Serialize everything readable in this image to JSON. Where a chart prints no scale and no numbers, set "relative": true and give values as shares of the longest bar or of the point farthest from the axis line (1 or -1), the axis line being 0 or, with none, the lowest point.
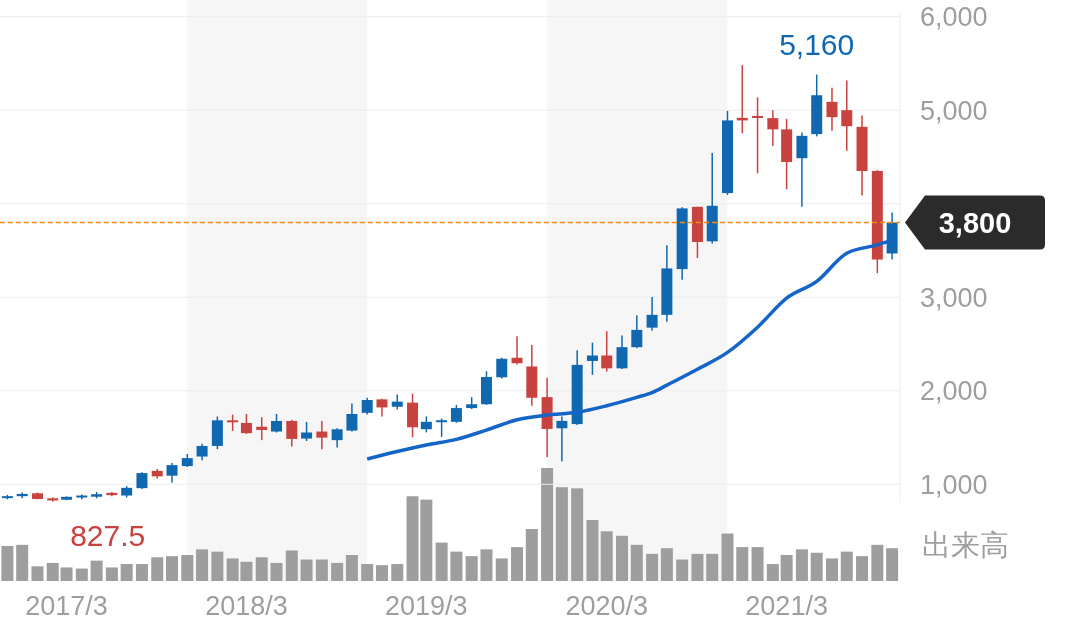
{
  "chart_data": [
    {
      "type": "candlestick",
      "x": [
        "2016-11",
        "2016-12",
        "2017-01",
        "2017-02",
        "2017-03",
        "2017-04",
        "2017-05",
        "2017-06",
        "2017-07",
        "2017-08",
        "2017-09",
        "2017-10",
        "2017-11",
        "2017-12",
        "2018-01",
        "2018-02",
        "2018-03",
        "2018-04",
        "2018-05",
        "2018-06",
        "2018-07",
        "2018-08",
        "2018-09",
        "2018-10",
        "2018-11",
        "2018-12",
        "2019-01",
        "2019-02",
        "2019-03",
        "2019-04",
        "2019-05",
        "2019-06",
        "2019-07",
        "2019-08",
        "2019-09",
        "2019-10",
        "2019-11",
        "2019-12",
        "2020-01",
        "2020-02",
        "2020-03",
        "2020-04",
        "2020-05",
        "2020-06",
        "2020-07",
        "2020-08",
        "2020-09",
        "2020-10",
        "2020-11",
        "2020-12",
        "2021-01",
        "2021-02",
        "2021-03",
        "2021-04",
        "2021-05",
        "2021-06",
        "2021-07",
        "2021-08",
        "2021-09",
        "2021-10"
      ],
      "ohlc": [
        [
          853,
          887,
          839,
          873
        ],
        [
          873,
          911,
          850,
          897
        ],
        [
          904,
          911,
          839,
          843
        ],
        [
          850,
          860,
          815,
          827.5
        ],
        [
          835,
          870,
          830,
          866
        ],
        [
          863,
          890,
          840,
          880
        ],
        [
          867,
          918,
          850,
          894
        ],
        [
          908,
          918,
          873,
          884
        ],
        [
          880,
          980,
          860,
          962
        ],
        [
          959,
          1130,
          949,
          1120
        ],
        [
          1144,
          1164,
          1062,
          1085
        ],
        [
          1092,
          1229,
          1017,
          1205
        ],
        [
          1195,
          1325,
          1185,
          1280
        ],
        [
          1297,
          1434,
          1256,
          1410
        ],
        [
          1410,
          1725,
          1376,
          1684
        ],
        [
          1684,
          1745,
          1571,
          1674
        ],
        [
          1656,
          1752,
          1540,
          1547
        ],
        [
          1615,
          1718,
          1472,
          1581
        ],
        [
          1564,
          1752,
          1554,
          1677
        ],
        [
          1677,
          1690,
          1403,
          1485
        ],
        [
          1489,
          1667,
          1462,
          1554
        ],
        [
          1564,
          1677,
          1376,
          1499
        ],
        [
          1472,
          1598,
          1393,
          1588
        ],
        [
          1574,
          1865,
          1564,
          1752
        ],
        [
          1764,
          1925,
          1747,
          1901
        ],
        [
          1908,
          1915,
          1726,
          1822
        ],
        [
          1829,
          1959,
          1801,
          1884
        ],
        [
          1873,
          1969,
          1503,
          1610
        ],
        [
          1589,
          1726,
          1555,
          1668
        ],
        [
          1671,
          1702,
          1507,
          1685
        ],
        [
          1668,
          1849,
          1658,
          1815
        ],
        [
          1815,
          1932,
          1805,
          1856
        ],
        [
          1856,
          2209,
          1849,
          2147
        ],
        [
          2144,
          2353,
          2130,
          2342
        ],
        [
          2353,
          2582,
          2281,
          2295
        ],
        [
          2260,
          2490,
          1839,
          1925
        ],
        [
          1932,
          2140,
          1291,
          1592
        ],
        [
          1599,
          1726,
          1247,
          1678
        ],
        [
          1644,
          2432,
          1634,
          2277
        ],
        [
          2319,
          2514,
          2171,
          2377
        ],
        [
          2377,
          2637,
          2205,
          2240
        ],
        [
          2240,
          2592,
          2233,
          2466
        ],
        [
          2466,
          2808,
          2455,
          2651
        ],
        [
          2675,
          3003,
          2641,
          2812
        ],
        [
          2812,
          3557,
          2737,
          3308
        ],
        [
          3301,
          3961,
          3188,
          3950
        ],
        [
          3967,
          3967,
          3420,
          3591
        ],
        [
          3598,
          4542,
          3574,
          3978
        ],
        [
          4114,
          4993,
          4094,
          4891
        ],
        [
          4918,
          5482,
          4754,
          4891
        ],
        [
          4938,
          5137,
          4326,
          4918
        ],
        [
          4915,
          5000,
          4617,
          4795
        ],
        [
          4795,
          4908,
          4155,
          4446
        ],
        [
          4487,
          4761,
          3967,
          4726
        ],
        [
          4744,
          5380,
          4720,
          5160
        ],
        [
          5089,
          5239,
          4781,
          4925
        ],
        [
          5000,
          5318,
          4566,
          4829
        ],
        [
          4822,
          4942,
          4087,
          4350
        ],
        [
          4350,
          4360,
          3256,
          3403
        ],
        [
          3468,
          3906,
          3403,
          3800
        ]
      ],
      "colors": [
        "#1068b0",
        "#1068b0",
        "#c8423f",
        "#c8423f",
        "#1068b0",
        "#1068b0",
        "#1068b0",
        "#c8423f",
        "#1068b0",
        "#1068b0",
        "#c8423f",
        "#1068b0",
        "#1068b0",
        "#1068b0",
        "#1068b0",
        "#c8423f",
        "#c8423f",
        "#c8423f",
        "#1068b0",
        "#c8423f",
        "#1068b0",
        "#c8423f",
        "#1068b0",
        "#1068b0",
        "#1068b0",
        "#c8423f",
        "#1068b0",
        "#c8423f",
        "#1068b0",
        "#1068b0",
        "#1068b0",
        "#1068b0",
        "#1068b0",
        "#1068b0",
        "#c8423f",
        "#c8423f",
        "#c8423f",
        "#1068b0",
        "#1068b0",
        "#1068b0",
        "#c8423f",
        "#1068b0",
        "#1068b0",
        "#1068b0",
        "#1068b0",
        "#1068b0",
        "#c8423f",
        "#1068b0",
        "#1068b0",
        "#c8423f",
        "#c8423f",
        "#c8423f",
        "#c8423f",
        "#1068b0",
        "#1068b0",
        "#c8423f",
        "#c8423f",
        "#c8423f",
        "#c8423f",
        "#1068b0"
      ],
      "series": [
        {
          "type": "line",
          "color": "#1565c8",
          "x": [
            "2018-11",
            "2019-01",
            "2019-03",
            "2019-05",
            "2019-07",
            "2019-09",
            "2019-11",
            "2020-01",
            "2020-03",
            "2020-05",
            "2020-06",
            "2020-07",
            "2020-09",
            "2020-11",
            "2021-01",
            "2021-03",
            "2021-05",
            "2021-07",
            "2021-09",
            "2021-10"
          ],
          "values": [
            1270,
            1350,
            1420,
            1480,
            1580,
            1690,
            1740,
            1770,
            1840,
            1930,
            1980,
            2060,
            2230,
            2410,
            2680,
            2990,
            3170,
            3470,
            3560,
            3610
          ]
        }
      ],
      "xlim": [
        "2016-10-17",
        "2021-10-17"
      ],
      "ylim": [
        800,
        6050
      ],
      "yticks": [
        {
          "value": 1000,
          "label": "1,000"
        },
        {
          "value": 2000,
          "label": "2,000"
        },
        {
          "value": 3000,
          "label": "3,000"
        },
        {
          "value": 4000,
          "label": null
        },
        {
          "value": 5000,
          "label": "5,000"
        },
        {
          "value": 6000,
          "label": "6,000"
        }
      ],
      "grid": "y",
      "tick_labels": "y",
      "ref_lines": [
        {
          "axis": "y",
          "value": 3800,
          "label": "3,800",
          "color": "#f08c1e",
          "line_style": "dashed"
        }
      ],
      "bands": [
        {
          "axis": "x",
          "from": "2017-11",
          "to": "2018-11",
          "color": "#f6f6f6"
        },
        {
          "axis": "x",
          "from": "2019-11",
          "to": "2020-11",
          "color": "#f6f6f6"
        }
      ],
      "annotations": [
        {
          "text": "5,160",
          "x": "2021-05",
          "y": 5160
        },
        {
          "text": "827.5",
          "x": "2017-02",
          "y": 827.5
        }
      ]
    },
    {
      "type": "bar",
      "relative": true,
      "ylabel": "出来高",
      "color": "#9e9e9e",
      "x": [
        "2016-11",
        "2016-12",
        "2017-01",
        "2017-02",
        "2017-03",
        "2017-04",
        "2017-05",
        "2017-06",
        "2017-07",
        "2017-08",
        "2017-09",
        "2017-10",
        "2017-11",
        "2017-12",
        "2018-01",
        "2018-02",
        "2018-03",
        "2018-04",
        "2018-05",
        "2018-06",
        "2018-07",
        "2018-08",
        "2018-09",
        "2018-10",
        "2018-11",
        "2018-12",
        "2019-01",
        "2019-02",
        "2019-03",
        "2019-04",
        "2019-05",
        "2019-06",
        "2019-07",
        "2019-08",
        "2019-09",
        "2019-10",
        "2019-11",
        "2019-12",
        "2020-01",
        "2020-02",
        "2020-03",
        "2020-04",
        "2020-05",
        "2020-06",
        "2020-07",
        "2020-08",
        "2020-09",
        "2020-10",
        "2020-11",
        "2020-12",
        "2021-01",
        "2021-02",
        "2021-03",
        "2021-04",
        "2021-05",
        "2021-06",
        "2021-07",
        "2021-08",
        "2021-09",
        "2021-10"
      ],
      "values": [
        0.31,
        0.32,
        0.13,
        0.16,
        0.12,
        0.11,
        0.18,
        0.12,
        0.15,
        0.15,
        0.21,
        0.22,
        0.23,
        0.28,
        0.26,
        0.2,
        0.17,
        0.21,
        0.16,
        0.27,
        0.19,
        0.19,
        0.16,
        0.23,
        0.15,
        0.14,
        0.15,
        0.75,
        0.72,
        0.34,
        0.26,
        0.22,
        0.28,
        0.2,
        0.3,
        0.46,
        1,
        0.83,
        0.82,
        0.54,
        0.44,
        0.4,
        0.32,
        0.24,
        0.29,
        0.19,
        0.24,
        0.24,
        0.42,
        0.3,
        0.3,
        0.15,
        0.23,
        0.28,
        0.25,
        0.2,
        0.26,
        0.22,
        0.32,
        0.29
      ],
      "xlim": [
        "2016-10-17",
        "2021-10-17"
      ],
      "xticks": [
        {
          "value": "2017-03",
          "label": "2017/3"
        },
        {
          "value": "2018-03",
          "label": "2018/3"
        },
        {
          "value": "2019-03",
          "label": "2019/3"
        },
        {
          "value": "2020-03",
          "label": "2020/3"
        },
        {
          "value": "2021-03",
          "label": "2021/3"
        }
      ],
      "tick_labels": "x"
    }
  ]
}
